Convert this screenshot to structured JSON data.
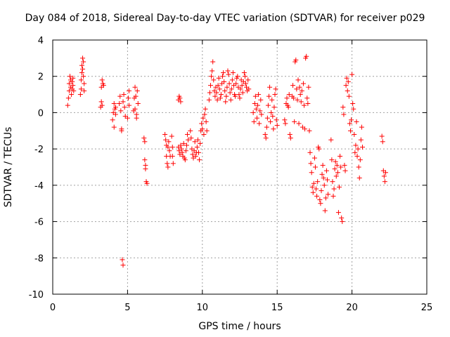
{
  "chart_data": {
    "type": "scatter",
    "title": "Day 084 of 2018, Sidereal Day-to-day VTEC variation (SDTVAR) for receiver p029",
    "xlabel": "GPS time / hours",
    "ylabel": "SDTVAR / TECUs",
    "xlim": [
      0,
      25
    ],
    "ylim": [
      -10,
      4
    ],
    "xticks": [
      "0",
      "5",
      "10",
      "15",
      "20",
      "25"
    ],
    "yticks": [
      "-10",
      "-8",
      "-6",
      "-4",
      "-2",
      "0",
      "2",
      "4"
    ],
    "grid": true,
    "marker": "+",
    "color": "#ff0000",
    "series": [
      {
        "name": "SDTVAR",
        "points": [
          [
            1.0,
            0.4
          ],
          [
            1.05,
            0.8
          ],
          [
            1.1,
            1.2
          ],
          [
            1.1,
            1.6
          ],
          [
            1.15,
            2.0
          ],
          [
            1.2,
            1.8
          ],
          [
            1.2,
            1.4
          ],
          [
            1.25,
            1.0
          ],
          [
            1.3,
            1.7
          ],
          [
            1.3,
            1.3
          ],
          [
            1.35,
            1.9
          ],
          [
            1.35,
            1.5
          ],
          [
            1.4,
            1.2
          ],
          [
            1.85,
            1.0
          ],
          [
            1.9,
            1.3
          ],
          [
            1.9,
            1.8
          ],
          [
            1.95,
            2.2
          ],
          [
            1.95,
            2.6
          ],
          [
            2.0,
            3.0
          ],
          [
            2.0,
            2.4
          ],
          [
            2.05,
            2.8
          ],
          [
            2.05,
            2.0
          ],
          [
            2.1,
            1.6
          ],
          [
            2.1,
            1.2
          ],
          [
            3.2,
            0.3
          ],
          [
            3.25,
            0.6
          ],
          [
            3.25,
            1.4
          ],
          [
            3.3,
            1.8
          ],
          [
            3.3,
            0.4
          ],
          [
            3.35,
            1.6
          ],
          [
            3.4,
            1.5
          ],
          [
            4.0,
            -0.4
          ],
          [
            4.05,
            0.0
          ],
          [
            4.1,
            0.5
          ],
          [
            4.1,
            -0.8
          ],
          [
            4.15,
            0.2
          ],
          [
            4.2,
            0.3
          ],
          [
            4.2,
            -0.1
          ],
          [
            4.45,
            0.5
          ],
          [
            4.5,
            0.9
          ],
          [
            4.55,
            0.1
          ],
          [
            4.6,
            -0.9
          ],
          [
            4.6,
            -1.0
          ],
          [
            4.65,
            -8.1
          ],
          [
            4.7,
            -8.4
          ],
          [
            4.7,
            0.6
          ],
          [
            4.75,
            1.0
          ],
          [
            4.8,
            0.3
          ],
          [
            4.85,
            -0.2
          ],
          [
            5.0,
            -0.3
          ],
          [
            5.05,
            0.8
          ],
          [
            5.1,
            1.2
          ],
          [
            5.1,
            0.4
          ],
          [
            5.4,
            0.1
          ],
          [
            5.45,
            0.8
          ],
          [
            5.5,
            1.4
          ],
          [
            5.5,
            0.2
          ],
          [
            5.55,
            0.9
          ],
          [
            5.6,
            -0.1
          ],
          [
            5.6,
            -0.3
          ],
          [
            5.65,
            1.2
          ],
          [
            5.7,
            0.5
          ],
          [
            6.1,
            -1.4
          ],
          [
            6.15,
            -1.6
          ],
          [
            6.15,
            -2.6
          ],
          [
            6.2,
            -2.9
          ],
          [
            6.2,
            -3.1
          ],
          [
            6.25,
            -3.8
          ],
          [
            6.3,
            -3.9
          ],
          [
            7.5,
            -1.2
          ],
          [
            7.55,
            -1.5
          ],
          [
            7.6,
            -1.8
          ],
          [
            7.6,
            -2.4
          ],
          [
            7.65,
            -2.8
          ],
          [
            7.7,
            -3.0
          ],
          [
            7.7,
            -1.9
          ],
          [
            7.75,
            -1.6
          ],
          [
            7.8,
            -2.1
          ],
          [
            7.85,
            -2.4
          ],
          [
            7.95,
            -1.3
          ],
          [
            8.0,
            -1.9
          ],
          [
            8.0,
            -2.4
          ],
          [
            8.05,
            -2.8
          ],
          [
            8.4,
            0.7
          ],
          [
            8.45,
            0.9
          ],
          [
            8.5,
            0.8
          ],
          [
            8.55,
            0.6
          ],
          [
            8.4,
            -1.9
          ],
          [
            8.45,
            -2.1
          ],
          [
            8.5,
            -2.3
          ],
          [
            8.55,
            -1.8
          ],
          [
            8.6,
            -2.0
          ],
          [
            8.65,
            -2.2
          ],
          [
            8.7,
            -2.4
          ],
          [
            8.75,
            -1.7
          ],
          [
            8.8,
            -2.5
          ],
          [
            8.85,
            -2.6
          ],
          [
            8.9,
            -2.1
          ],
          [
            8.95,
            -1.8
          ],
          [
            9.0,
            -1.2
          ],
          [
            9.05,
            -1.5
          ],
          [
            9.2,
            -1.0
          ],
          [
            9.25,
            -1.4
          ],
          [
            9.3,
            -2.0
          ],
          [
            9.35,
            -2.3
          ],
          [
            9.4,
            -2.5
          ],
          [
            9.45,
            -2.1
          ],
          [
            9.5,
            -1.6
          ],
          [
            9.55,
            -2.4
          ],
          [
            9.6,
            -2.2
          ],
          [
            9.65,
            -1.9
          ],
          [
            9.7,
            -1.5
          ],
          [
            9.75,
            -2.2
          ],
          [
            9.8,
            -2.6
          ],
          [
            9.85,
            -1.7
          ],
          [
            9.9,
            -1.0
          ],
          [
            9.95,
            -0.6
          ],
          [
            10.0,
            -0.9
          ],
          [
            10.05,
            -0.3
          ],
          [
            10.1,
            -1.2
          ],
          [
            10.15,
            -0.1
          ],
          [
            10.2,
            0.2
          ],
          [
            10.25,
            -0.5
          ],
          [
            10.3,
            -1.0
          ],
          [
            10.45,
            0.7
          ],
          [
            10.5,
            1.1
          ],
          [
            10.55,
            1.5
          ],
          [
            10.6,
            2.0
          ],
          [
            10.65,
            2.3
          ],
          [
            10.7,
            2.8
          ],
          [
            10.75,
            1.8
          ],
          [
            10.8,
            1.2
          ],
          [
            10.85,
            0.9
          ],
          [
            10.9,
            1.4
          ],
          [
            10.95,
            1.1
          ],
          [
            11.0,
            0.7
          ],
          [
            11.05,
            1.5
          ],
          [
            11.1,
            1.9
          ],
          [
            11.15,
            1.3
          ],
          [
            11.2,
            0.8
          ],
          [
            11.25,
            1.0
          ],
          [
            11.3,
            1.6
          ],
          [
            11.35,
            2.0
          ],
          [
            11.4,
            2.2
          ],
          [
            11.45,
            1.7
          ],
          [
            11.5,
            1.2
          ],
          [
            11.55,
            0.6
          ],
          [
            11.6,
            0.9
          ],
          [
            11.65,
            1.4
          ],
          [
            11.7,
            2.3
          ],
          [
            11.75,
            2.1
          ],
          [
            11.8,
            1.6
          ],
          [
            11.85,
            1.1
          ],
          [
            11.9,
            0.7
          ],
          [
            11.95,
            1.3
          ],
          [
            12.0,
            1.8
          ],
          [
            12.05,
            2.2
          ],
          [
            12.1,
            1.5
          ],
          [
            12.15,
            1.0
          ],
          [
            12.2,
            0.9
          ],
          [
            12.25,
            1.6
          ],
          [
            12.3,
            1.9
          ],
          [
            12.35,
            2.0
          ],
          [
            12.4,
            1.4
          ],
          [
            12.45,
            1.0
          ],
          [
            12.5,
            0.8
          ],
          [
            12.55,
            1.3
          ],
          [
            12.6,
            1.8
          ],
          [
            12.65,
            1.5
          ],
          [
            12.7,
            1.1
          ],
          [
            12.75,
            1.7
          ],
          [
            12.8,
            2.2
          ],
          [
            12.85,
            2.0
          ],
          [
            12.9,
            1.6
          ],
          [
            12.95,
            1.4
          ],
          [
            13.0,
            1.2
          ],
          [
            13.05,
            1.8
          ],
          [
            13.1,
            1.3
          ],
          [
            13.4,
            0.0
          ],
          [
            13.45,
            -0.5
          ],
          [
            13.5,
            0.5
          ],
          [
            13.55,
            0.9
          ],
          [
            13.6,
            0.2
          ],
          [
            13.65,
            -0.3
          ],
          [
            13.7,
            0.4
          ],
          [
            13.75,
            1.0
          ],
          [
            13.8,
            -0.6
          ],
          [
            13.85,
            0.1
          ],
          [
            13.9,
            0.7
          ],
          [
            13.95,
            -0.1
          ],
          [
            14.2,
            -1.2
          ],
          [
            14.25,
            -1.4
          ],
          [
            14.3,
            -0.8
          ],
          [
            14.35,
            -0.3
          ],
          [
            14.4,
            0.4
          ],
          [
            14.45,
            0.9
          ],
          [
            14.5,
            1.4
          ],
          [
            14.55,
            -0.5
          ],
          [
            14.6,
            0.0
          ],
          [
            14.65,
            0.7
          ],
          [
            14.7,
            -0.2
          ],
          [
            14.75,
            -0.9
          ],
          [
            14.8,
            0.3
          ],
          [
            14.85,
            1.0
          ],
          [
            14.9,
            1.3
          ],
          [
            14.95,
            -0.4
          ],
          [
            15.0,
            -0.7
          ],
          [
            15.5,
            -0.4
          ],
          [
            15.55,
            -0.6
          ],
          [
            15.6,
            0.5
          ],
          [
            15.65,
            0.8
          ],
          [
            15.7,
            0.4
          ],
          [
            15.75,
            0.3
          ],
          [
            15.8,
            1.0
          ],
          [
            15.85,
            -1.2
          ],
          [
            15.9,
            -1.4
          ],
          [
            16.0,
            0.9
          ],
          [
            16.05,
            1.5
          ],
          [
            16.1,
            0.8
          ],
          [
            16.15,
            -0.5
          ],
          [
            16.2,
            2.8
          ],
          [
            16.25,
            2.9
          ],
          [
            16.3,
            1.3
          ],
          [
            16.35,
            0.7
          ],
          [
            16.4,
            1.8
          ],
          [
            16.45,
            -0.6
          ],
          [
            16.5,
            1.4
          ],
          [
            16.55,
            1.0
          ],
          [
            16.6,
            0.6
          ],
          [
            16.65,
            1.2
          ],
          [
            16.7,
            -0.8
          ],
          [
            16.75,
            1.6
          ],
          [
            16.8,
            0.4
          ],
          [
            16.85,
            -0.9
          ],
          [
            16.9,
            3.0
          ],
          [
            16.95,
            3.1
          ],
          [
            17.0,
            0.8
          ],
          [
            17.05,
            0.5
          ],
          [
            17.1,
            1.4
          ],
          [
            17.15,
            -1.0
          ],
          [
            17.2,
            -2.2
          ],
          [
            17.25,
            -2.8
          ],
          [
            17.3,
            -3.3
          ],
          [
            17.35,
            -4.1
          ],
          [
            17.4,
            -4.4
          ],
          [
            17.45,
            -3.9
          ],
          [
            17.5,
            -2.5
          ],
          [
            17.55,
            -3.0
          ],
          [
            17.6,
            -4.2
          ],
          [
            17.65,
            -4.6
          ],
          [
            17.7,
            -3.8
          ],
          [
            17.75,
            -1.9
          ],
          [
            17.8,
            -2.0
          ],
          [
            17.85,
            -4.8
          ],
          [
            17.9,
            -5.0
          ],
          [
            17.95,
            -4.3
          ],
          [
            18.0,
            -3.4
          ],
          [
            18.05,
            -2.9
          ],
          [
            18.1,
            -3.6
          ],
          [
            18.15,
            -4.0
          ],
          [
            18.2,
            -5.4
          ],
          [
            18.25,
            -4.7
          ],
          [
            18.3,
            -3.2
          ],
          [
            18.35,
            -3.7
          ],
          [
            18.4,
            -4.5
          ],
          [
            18.6,
            -1.5
          ],
          [
            18.65,
            -2.6
          ],
          [
            18.7,
            -3.8
          ],
          [
            18.75,
            -4.6
          ],
          [
            18.8,
            -4.2
          ],
          [
            18.85,
            -3.1
          ],
          [
            18.9,
            -2.7
          ],
          [
            18.95,
            -3.5
          ],
          [
            19.0,
            -2.9
          ],
          [
            19.05,
            -3.3
          ],
          [
            19.1,
            -5.5
          ],
          [
            19.15,
            -4.1
          ],
          [
            19.2,
            -2.4
          ],
          [
            19.25,
            -3.0
          ],
          [
            19.3,
            -5.8
          ],
          [
            19.35,
            -6.0
          ],
          [
            19.4,
            0.3
          ],
          [
            19.45,
            -0.1
          ],
          [
            19.5,
            -2.9
          ],
          [
            19.55,
            -3.2
          ],
          [
            19.6,
            1.5
          ],
          [
            19.65,
            1.9
          ],
          [
            19.7,
            1.2
          ],
          [
            19.75,
            1.7
          ],
          [
            19.8,
            0.9
          ],
          [
            19.85,
            -0.6
          ],
          [
            19.9,
            -1.0
          ],
          [
            19.95,
            -0.4
          ],
          [
            20.0,
            2.1
          ],
          [
            20.05,
            0.5
          ],
          [
            20.1,
            0.2
          ],
          [
            20.15,
            -1.2
          ],
          [
            20.2,
            -2.2
          ],
          [
            20.25,
            -1.8
          ],
          [
            20.3,
            -0.5
          ],
          [
            20.35,
            -2.4
          ],
          [
            20.4,
            -2.0
          ],
          [
            20.45,
            -3.0
          ],
          [
            20.5,
            -3.6
          ],
          [
            20.55,
            -2.6
          ],
          [
            20.6,
            -1.5
          ],
          [
            20.65,
            -0.8
          ],
          [
            20.7,
            -1.9
          ],
          [
            22.0,
            -1.3
          ],
          [
            22.05,
            -1.6
          ],
          [
            22.1,
            -3.2
          ],
          [
            22.15,
            -3.5
          ],
          [
            22.2,
            -3.8
          ],
          [
            22.25,
            -3.3
          ]
        ]
      }
    ]
  }
}
